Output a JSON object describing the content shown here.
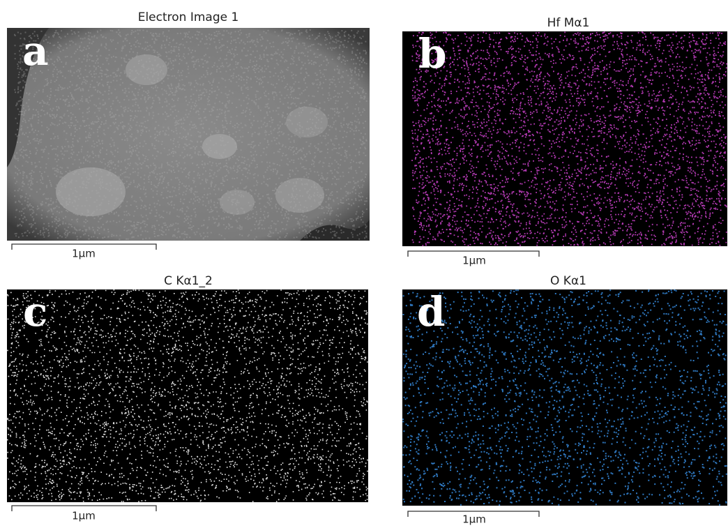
{
  "panels": [
    {
      "title": "Electron Image 1",
      "letter": "a",
      "scale_label": "1μm"
    },
    {
      "title": "Hf Mα1",
      "letter": "b",
      "scale_label": "1μm"
    },
    {
      "title": "C Kα1_2",
      "letter": "c",
      "scale_label": "1μm"
    },
    {
      "title": "O Kα1",
      "letter": "d",
      "scale_label": "1μm"
    }
  ]
}
